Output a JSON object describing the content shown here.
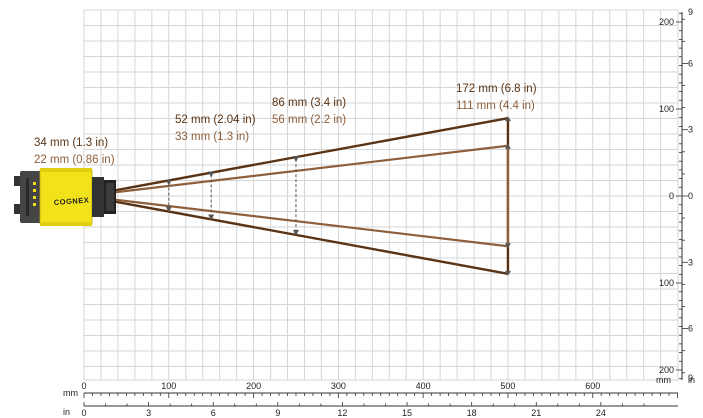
{
  "colors": {
    "dark_line": "#5a3314",
    "light_line": "#8e5e3a",
    "grid": "#d6d6d6",
    "camera_body": "#f2e21a",
    "camera_dark": "#3a3a3a"
  },
  "camera": {
    "brand": "COGNEX",
    "icon": "camera-icon"
  },
  "axes": {
    "bottom_mm": {
      "unit": "mm",
      "ticks": [
        "0",
        "100",
        "200",
        "300",
        "400",
        "500",
        "600"
      ]
    },
    "bottom_in": {
      "unit": "in",
      "ticks": [
        "0",
        "3",
        "6",
        "9",
        "12",
        "15",
        "18",
        "21",
        "24"
      ]
    },
    "right_mm": {
      "unit": "mm",
      "ticks": [
        "200",
        "100",
        "0",
        "100",
        "200"
      ]
    },
    "right_in": {
      "unit": "in",
      "ticks": [
        "9",
        "6",
        "3",
        "0",
        "3",
        "6",
        "9"
      ]
    }
  },
  "fov": [
    {
      "distance_mm": 100,
      "field_large_mm": 34,
      "field_small_mm": 22,
      "label_large": "34 mm (1.3 in)",
      "label_small": "22 mm (0.86 in)"
    },
    {
      "distance_mm": 150,
      "field_large_mm": 52,
      "field_small_mm": 33,
      "label_large": "52 mm (2.04 in)",
      "label_small": "33 mm (1.3 in)"
    },
    {
      "distance_mm": 250,
      "field_large_mm": 86,
      "field_small_mm": 56,
      "label_large": "86 mm (3.4 in)",
      "label_small": "56 mm (2.2 in)"
    },
    {
      "distance_mm": 500,
      "field_large_mm": 172,
      "field_small_mm": 111,
      "label_large": "172 mm (6.8 in)",
      "label_small": "111 mm (4.4 in)"
    }
  ]
}
